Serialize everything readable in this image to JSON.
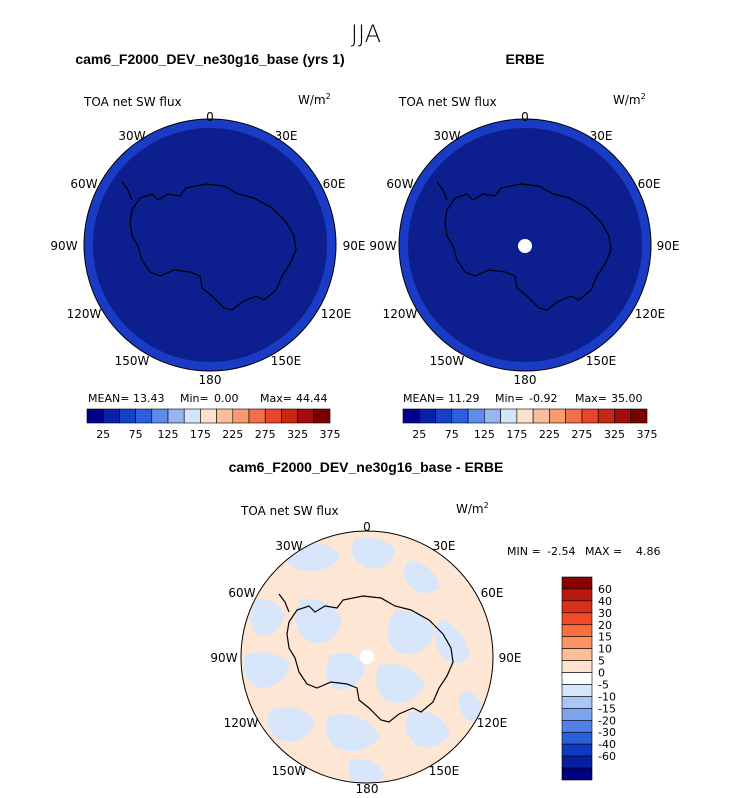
{
  "season_title": "JJA",
  "panels": [
    {
      "title": "cam6_F2000_DEV_ne30g16_base (yrs 1)",
      "variable": "TOA net SW flux",
      "units": "W/m",
      "units_exp": "2",
      "stats": {
        "mean_label": "MEAN=",
        "mean": "13.43",
        "min_label": "Min=",
        "min": "0.00",
        "max_label": "Max=",
        "max": "44.44"
      },
      "lon_labels": [
        "0",
        "30E",
        "60E",
        "90E",
        "120E",
        "150E",
        "180",
        "150W",
        "120W",
        "90W",
        "60W",
        "30W"
      ],
      "pole_hole": false
    },
    {
      "title": "ERBE",
      "variable": "TOA net SW flux",
      "units": "W/m",
      "units_exp": "2",
      "stats": {
        "mean_label": "MEAN=",
        "mean": "11.29",
        "min_label": "Min=",
        "min": "-0.92",
        "max_label": "Max=",
        "max": "35.00"
      },
      "lon_labels": [
        "0",
        "30E",
        "60E",
        "90E",
        "120E",
        "150E",
        "180",
        "150W",
        "120W",
        "90W",
        "60W",
        "30W"
      ],
      "pole_hole": true
    }
  ],
  "abs_colorbar": {
    "colors": [
      "#00008b",
      "#0a1fa8",
      "#1740c8",
      "#2a5fe0",
      "#5f8bea",
      "#96b5f2",
      "#d4e4fa",
      "#fde0cf",
      "#fbbd9c",
      "#f89a72",
      "#f4704a",
      "#e8452b",
      "#c82616",
      "#a10d0a",
      "#7a0000"
    ],
    "tick_labels": [
      "25",
      "75",
      "125",
      "175",
      "225",
      "275",
      "325",
      "375"
    ]
  },
  "diff_panel": {
    "title": "cam6_F2000_DEV_ne30g16_base - ERBE",
    "variable": "TOA net SW flux",
    "units": "W/m",
    "units_exp": "2",
    "min_label": "MIN =",
    "min": "-2.54",
    "max_label": "MAX =",
    "max": "4.86",
    "lon_labels": [
      "0",
      "30E",
      "60E",
      "90E",
      "120E",
      "150E",
      "180",
      "150W",
      "120W",
      "90W",
      "60W",
      "30W"
    ],
    "colorbar": {
      "colors": [
        "#8b0000",
        "#b81a10",
        "#d9301c",
        "#f04a28",
        "#f7703e",
        "#f99463",
        "#fcbd98",
        "#fde3cf",
        "#ffffff",
        "#d5e6fb",
        "#a9c6f5",
        "#7da4ee",
        "#5181e6",
        "#2a5fd9",
        "#1038c2",
        "#061f9e",
        "#000080"
      ],
      "labels": [
        "60",
        "40",
        "30",
        "20",
        "15",
        "10",
        "5",
        "0",
        "-5",
        "-10",
        "-15",
        "-20",
        "-30",
        "-40",
        "-60"
      ]
    }
  },
  "colors": {
    "ocean_dark": "#0d1f8e",
    "ocean_ring": "#1a3cc4",
    "diff_positive": "#fde6d4",
    "diff_negative": "#d7e6fb"
  }
}
